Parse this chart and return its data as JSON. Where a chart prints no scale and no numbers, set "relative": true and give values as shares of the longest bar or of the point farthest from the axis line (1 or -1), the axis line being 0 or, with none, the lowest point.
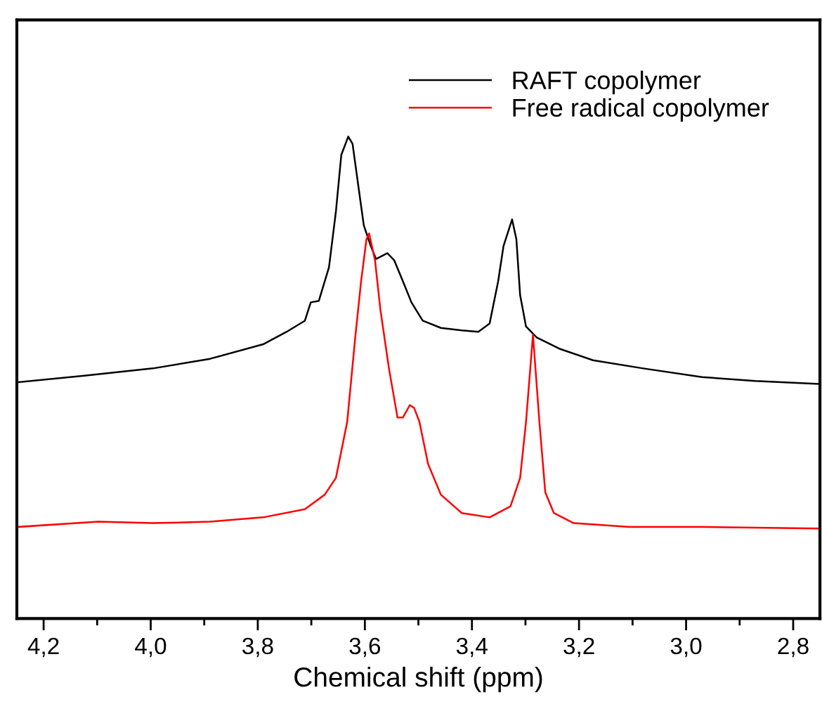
{
  "chart_data": {
    "type": "line",
    "xlabel": "Chemical shift (ppm)",
    "relative": true,
    "tick_labels": "x",
    "legend": "top right",
    "grid": false,
    "xlim": [
      4.25,
      2.75
    ],
    "xticks": [
      {
        "value": 4.2,
        "label": "4,2"
      },
      {
        "value": 4.1,
        "label": null
      },
      {
        "value": 4.0,
        "label": "4,0"
      },
      {
        "value": 3.9,
        "label": null
      },
      {
        "value": 3.8,
        "label": "3,8"
      },
      {
        "value": 3.7,
        "label": null
      },
      {
        "value": 3.6,
        "label": "3,6"
      },
      {
        "value": 3.5,
        "label": null
      },
      {
        "value": 3.4,
        "label": "3,4"
      },
      {
        "value": 3.3,
        "label": null
      },
      {
        "value": 3.2,
        "label": "3,2"
      },
      {
        "value": 3.1,
        "label": null
      },
      {
        "value": 3.0,
        "label": "3,0"
      },
      {
        "value": 2.9,
        "label": null
      },
      {
        "value": 2.8,
        "label": "2,8"
      }
    ],
    "series": [
      {
        "name": "RAFT copolymer",
        "color": "#000000",
        "x": [
          4.25,
          4.124,
          3.996,
          3.889,
          3.79,
          3.746,
          3.712,
          3.701,
          3.686,
          3.667,
          3.654,
          3.644,
          3.631,
          3.623,
          3.613,
          3.602,
          3.589,
          3.579,
          3.558,
          3.545,
          3.529,
          3.513,
          3.492,
          3.458,
          3.419,
          3.388,
          3.367,
          3.351,
          3.341,
          3.325,
          3.317,
          3.31,
          3.299,
          3.279,
          3.237,
          3.174,
          3.08,
          2.97,
          2.871,
          2.753
        ],
        "values": [
          0.49,
          0.504,
          0.519,
          0.539,
          0.569,
          0.595,
          0.618,
          0.656,
          0.659,
          0.729,
          0.845,
          0.962,
          1.0,
          0.985,
          0.904,
          0.816,
          0.773,
          0.746,
          0.758,
          0.743,
          0.7,
          0.656,
          0.618,
          0.603,
          0.598,
          0.595,
          0.612,
          0.7,
          0.773,
          0.828,
          0.787,
          0.671,
          0.606,
          0.583,
          0.56,
          0.536,
          0.519,
          0.501,
          0.493,
          0.487
        ]
      },
      {
        "name": "Free radical copolymer",
        "color": "#ff0000",
        "x": [
          4.25,
          4.098,
          3.996,
          3.889,
          3.79,
          3.712,
          3.675,
          3.654,
          3.633,
          3.618,
          3.607,
          3.597,
          3.592,
          3.581,
          3.571,
          3.555,
          3.539,
          3.529,
          3.516,
          3.508,
          3.498,
          3.482,
          3.458,
          3.419,
          3.367,
          3.328,
          3.31,
          3.299,
          3.286,
          3.274,
          3.263,
          3.247,
          3.21,
          3.106,
          2.97,
          2.753
        ],
        "values": [
          0.19,
          0.201,
          0.198,
          0.201,
          0.21,
          0.227,
          0.257,
          0.292,
          0.408,
          0.583,
          0.7,
          0.787,
          0.799,
          0.743,
          0.641,
          0.519,
          0.417,
          0.417,
          0.443,
          0.437,
          0.408,
          0.321,
          0.257,
          0.219,
          0.21,
          0.233,
          0.292,
          0.408,
          0.589,
          0.408,
          0.262,
          0.219,
          0.198,
          0.19,
          0.19,
          0.187
        ]
      }
    ]
  }
}
